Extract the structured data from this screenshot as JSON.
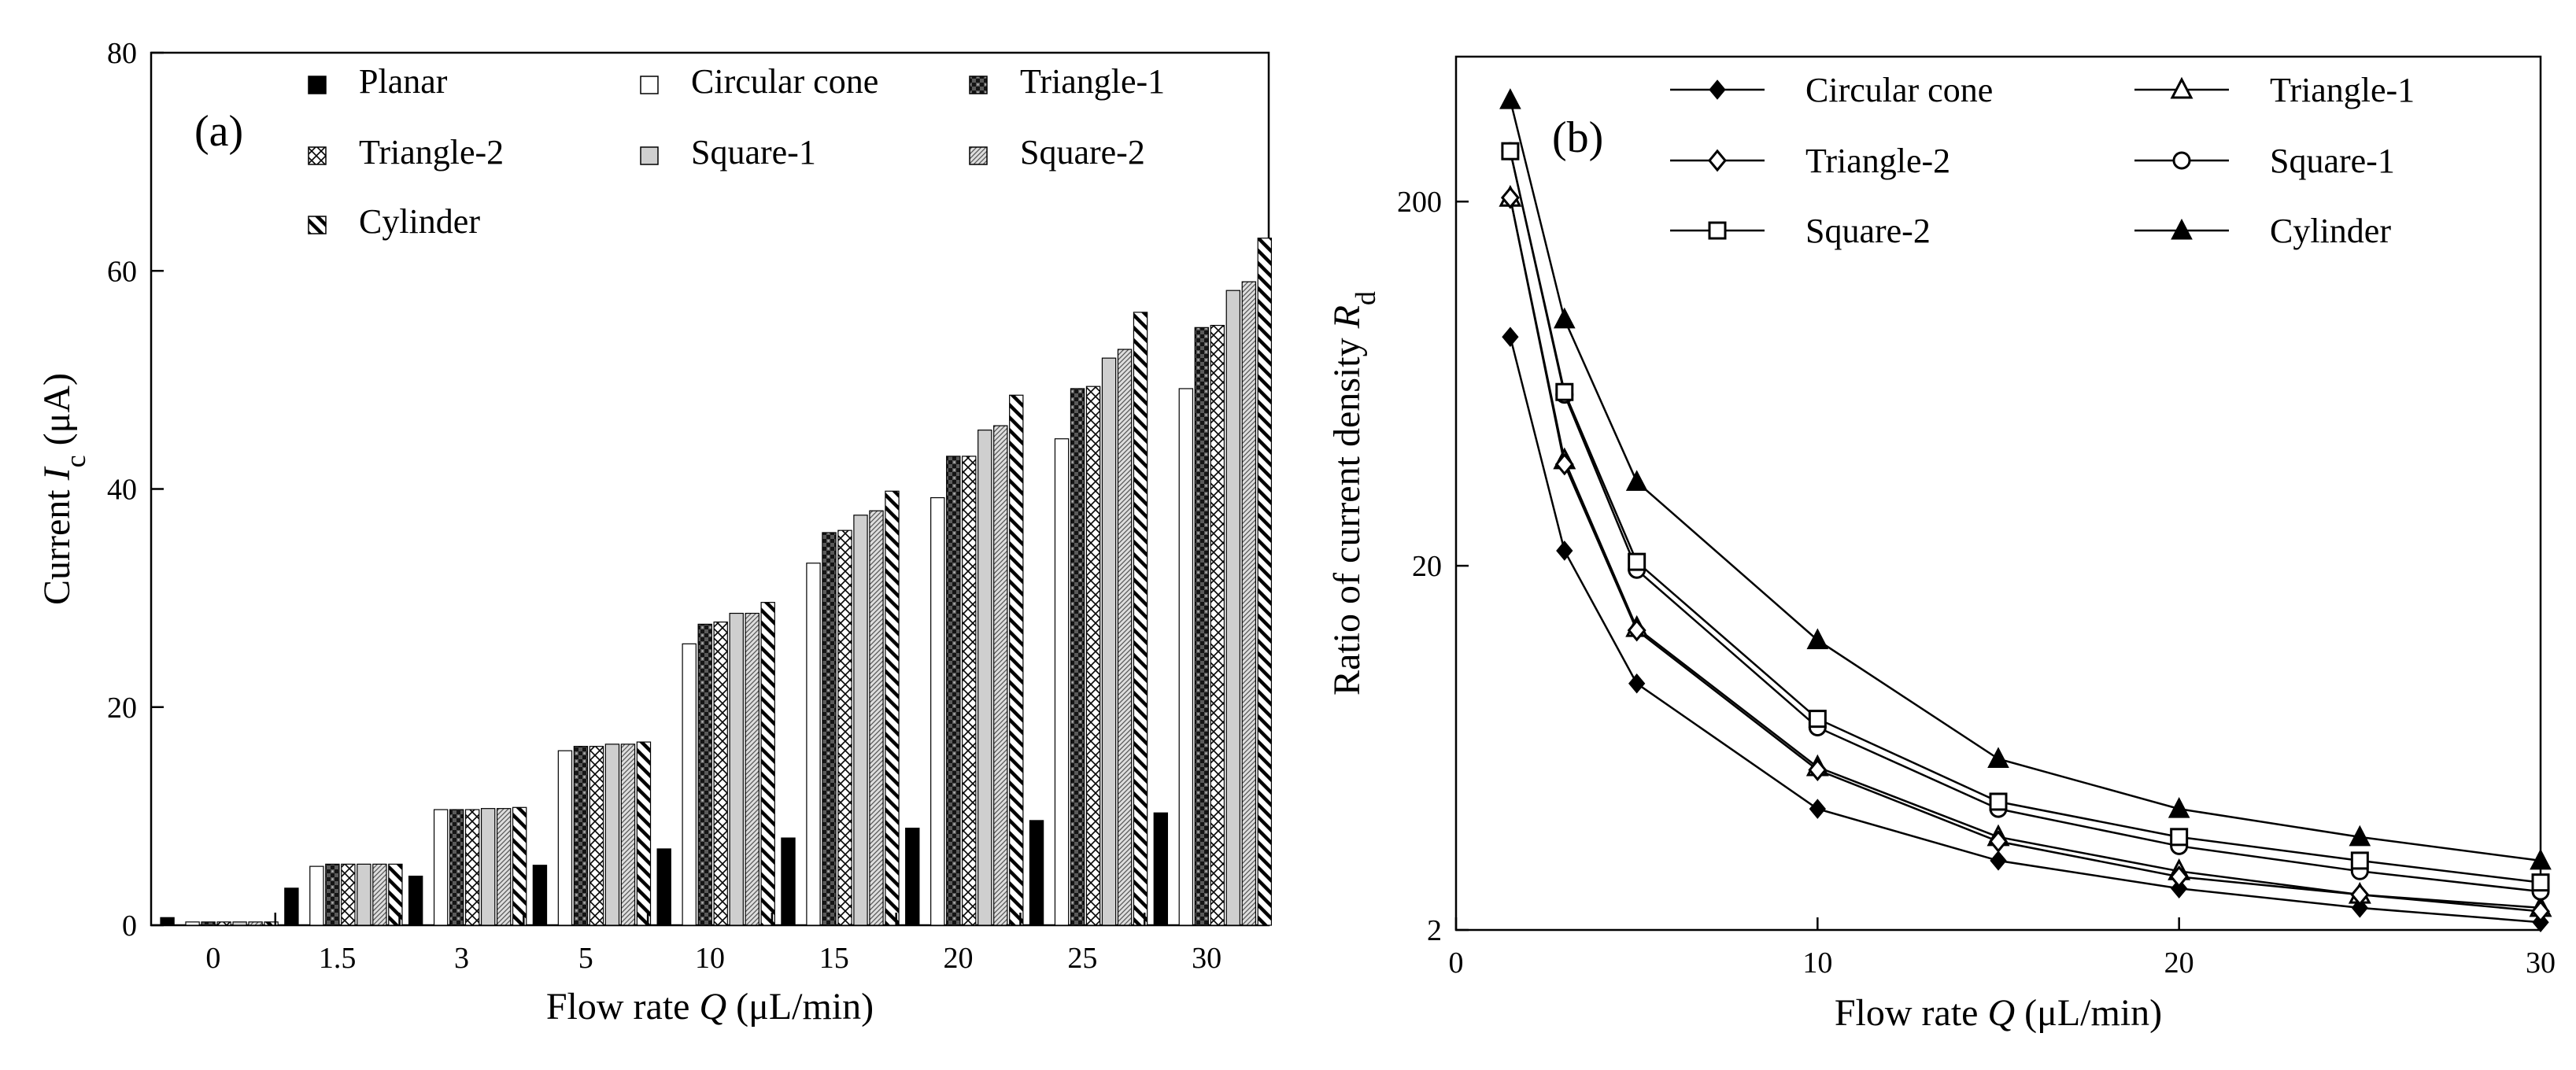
{
  "colors": {
    "ink": "#000000",
    "paper": "#ffffff",
    "gray": "#c8c8c8"
  },
  "chart_data": [
    {
      "id": "a",
      "type": "bar",
      "panel_label": "(a)",
      "title": "",
      "xlabel": "Flow rate Q (μL/min)",
      "xlabel_parts": [
        "Flow rate ",
        "Q",
        " (μL/min)"
      ],
      "ylabel": "Current  Ic (μA)",
      "ylabel_parts": [
        "Current  ",
        "I",
        "c",
        " (μA)"
      ],
      "ylim": [
        0,
        80
      ],
      "yticks": [
        "0",
        "20",
        "40",
        "60",
        "80"
      ],
      "grid": false,
      "legend_position": "top",
      "categories": [
        "0",
        "1.5",
        "3",
        "5",
        "10",
        "15",
        "20",
        "25",
        "30"
      ],
      "series": [
        {
          "name": "Planar",
          "pattern": "solid-black",
          "values": [
            0.7,
            3.4,
            4.5,
            5.5,
            7.0,
            8.0,
            8.9,
            9.6,
            10.3
          ]
        },
        {
          "name": "Circular cone",
          "pattern": "white",
          "values": [
            0.3,
            5.4,
            10.6,
            16.0,
            25.8,
            33.2,
            39.2,
            44.6,
            49.2
          ]
        },
        {
          "name": "Triangle-1",
          "pattern": "dark-checker",
          "values": [
            0.3,
            5.6,
            10.6,
            16.4,
            27.6,
            36.0,
            43.0,
            49.2,
            54.8
          ]
        },
        {
          "name": "Triangle-2",
          "pattern": "crosshatch",
          "values": [
            0.3,
            5.6,
            10.6,
            16.4,
            27.8,
            36.2,
            43.0,
            49.4,
            55.0
          ]
        },
        {
          "name": "Square-1",
          "pattern": "light-gray",
          "values": [
            0.3,
            5.6,
            10.7,
            16.6,
            28.6,
            37.6,
            45.4,
            52.0,
            58.2
          ]
        },
        {
          "name": "Square-2",
          "pattern": "fine-diagonal",
          "values": [
            0.3,
            5.6,
            10.7,
            16.6,
            28.6,
            38.0,
            45.8,
            52.8,
            59.0
          ]
        },
        {
          "name": "Cylinder",
          "pattern": "bold-diagonal",
          "values": [
            0.3,
            5.6,
            10.8,
            16.8,
            29.6,
            39.8,
            48.6,
            56.2,
            63.0
          ]
        }
      ]
    },
    {
      "id": "b",
      "type": "line",
      "panel_label": "(b)",
      "title": "",
      "xlabel": "Flow rate Q (μL/min)",
      "xlabel_parts": [
        "Flow rate ",
        "Q",
        " (μL/min)"
      ],
      "ylabel": "Ratio of current density Rd",
      "ylabel_parts": [
        "Ratio of current density ",
        "R",
        "d"
      ],
      "xlim": [
        0,
        30
      ],
      "xticks": [
        "0",
        "10",
        "20",
        "30"
      ],
      "yscale": "log",
      "ylim": [
        2,
        500
      ],
      "yticks": [
        "2",
        "20",
        "200"
      ],
      "grid": false,
      "legend_position": "top",
      "x": [
        1.5,
        3,
        5,
        10,
        15,
        20,
        25,
        30
      ],
      "series": [
        {
          "name": "Circular cone",
          "marker": "filled-diamond",
          "values": [
            85,
            22,
            9.5,
            4.3,
            3.1,
            2.6,
            2.3,
            2.1
          ]
        },
        {
          "name": "Triangle-1",
          "marker": "open-triangle",
          "values": [
            205,
            39,
            13.5,
            5.6,
            3.6,
            2.9,
            2.5,
            2.3
          ]
        },
        {
          "name": "Triangle-2",
          "marker": "open-diamond",
          "values": [
            205,
            38,
            13.3,
            5.5,
            3.5,
            2.8,
            2.5,
            2.25
          ]
        },
        {
          "name": "Square-1",
          "marker": "open-circle",
          "values": [
            275,
            59,
            19.5,
            7.2,
            4.3,
            3.4,
            2.9,
            2.55
          ]
        },
        {
          "name": "Square-2",
          "marker": "open-square",
          "values": [
            275,
            60,
            20.5,
            7.6,
            4.5,
            3.6,
            3.1,
            2.7
          ]
        },
        {
          "name": "Cylinder",
          "marker": "filled-triangle",
          "values": [
            380,
            95,
            34,
            12.5,
            5.9,
            4.3,
            3.6,
            3.1
          ]
        }
      ]
    }
  ]
}
